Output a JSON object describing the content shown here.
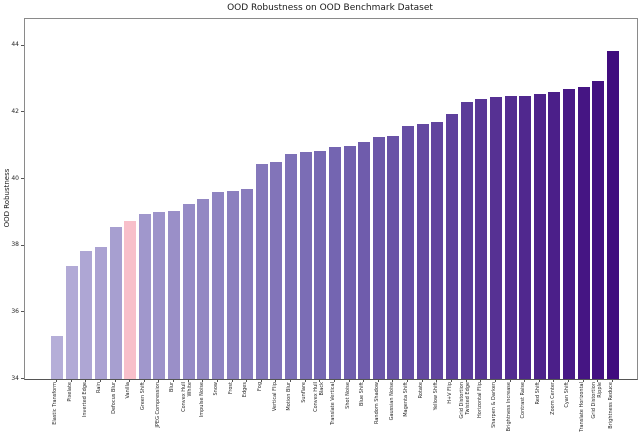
{
  "chart_data": {
    "type": "bar",
    "title": "OOD Robustness on OOD Benchmark Dataset",
    "xlabel": "",
    "ylabel": "OOD Robustness",
    "ylim": [
      34,
      44.8
    ],
    "yticks": [
      34,
      36,
      38,
      40,
      42,
      44
    ],
    "grid": false,
    "legend": "none",
    "categories": [
      "Elastic Transform",
      "Pixelate",
      "Inverted Edge",
      "Rain",
      "Defocus Blur",
      "Vanilla",
      "Green Shift",
      "JPEG Compression",
      "Blur",
      "Convex Hull\nWhite",
      "Impulse Noise",
      "Snow",
      "Frost",
      "Edges",
      "Fog",
      "Vertical Flip",
      "Motion Blur",
      "Sunflare",
      "Convex Hull\nBlack",
      "Translate Vertical",
      "Shot Noise",
      "Blue Shift",
      "Random Shadow",
      "Gaussian Noise",
      "Magenta Shift",
      "Rotate",
      "Yellow Shift",
      "H+V Flip",
      "Grid Distortion\nTwisted Edge",
      "Horizontal Flip",
      "Sharpen & Darken",
      "Brightness Increase",
      "Contrast Raise",
      "Red Shift",
      "Zoom Center",
      "Cyan Shift",
      "Translate Horizontal",
      "Grid Distortion\nRipple",
      "Brightness Reduce"
    ],
    "values": [
      35.3,
      37.4,
      37.85,
      37.95,
      38.55,
      38.75,
      38.95,
      39.0,
      39.05,
      39.25,
      39.4,
      39.6,
      39.65,
      39.7,
      40.45,
      40.5,
      40.75,
      40.8,
      40.85,
      40.95,
      41.0,
      41.1,
      41.25,
      41.3,
      41.6,
      41.65,
      41.7,
      41.95,
      42.3,
      42.4,
      42.45,
      42.5,
      42.5,
      42.55,
      42.6,
      42.7,
      42.75,
      42.95,
      43.85
    ],
    "highlight_category": "Vanilla",
    "colors": {
      "scale_low": "#b5aed8",
      "scale_mid": "#7465b1",
      "scale_high": "#400c7e",
      "highlight": "#f8bfca"
    }
  }
}
